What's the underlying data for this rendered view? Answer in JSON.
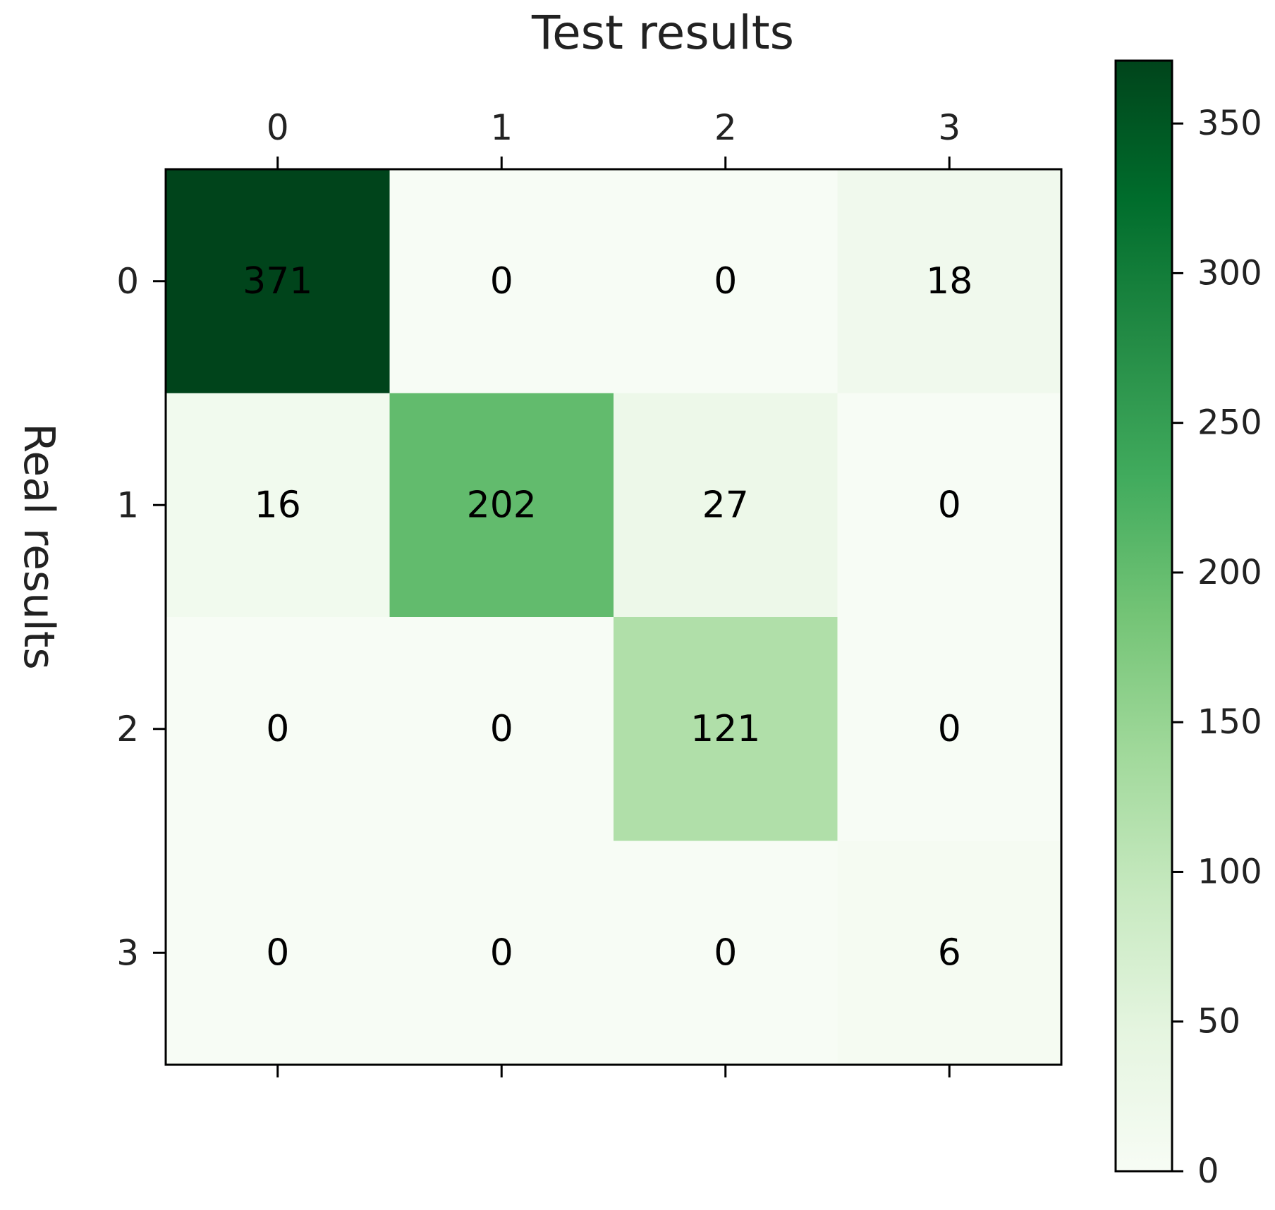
{
  "chart_data": {
    "type": "heatmap",
    "title": "Test results",
    "xlabel": "Test results",
    "ylabel": "Real results",
    "x_categories": [
      "0",
      "1",
      "2",
      "3"
    ],
    "y_categories": [
      "0",
      "1",
      "2",
      "3"
    ],
    "x_tick_position": "top",
    "matrix": [
      [
        371,
        0,
        0,
        18
      ],
      [
        16,
        202,
        27,
        0
      ],
      [
        0,
        0,
        121,
        0
      ],
      [
        0,
        0,
        0,
        6
      ]
    ],
    "colormap": "Greens",
    "colors": {
      "low": "#f7fcf5",
      "high": "#00441b"
    },
    "colorbar": {
      "range": [
        0,
        371
      ],
      "ticks": [
        0,
        50,
        100,
        150,
        200,
        250,
        300,
        350
      ],
      "tick_labels": [
        "0",
        "50",
        "100",
        "150",
        "200",
        "250",
        "300",
        "350"
      ]
    },
    "grid": false
  }
}
